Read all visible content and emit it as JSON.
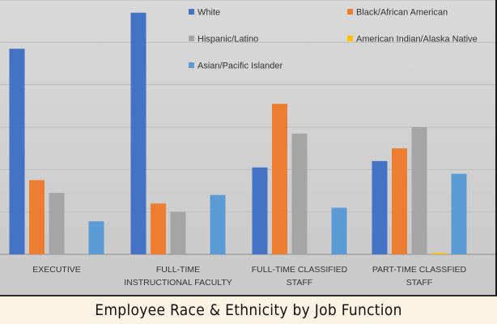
{
  "chart_data": {
    "type": "bar",
    "title": "Employee Race & Ethnicity by Job Function",
    "categories": [
      [
        "EXECUTIVE"
      ],
      [
        "FULL-TIME",
        "INSTRUCTIONAL FACULTY"
      ],
      [
        "FULL-TIME CLASSIFIED",
        "STAFF"
      ],
      [
        "PART-TIME CLASSFIED",
        "STAFF"
      ]
    ],
    "series": [
      {
        "name": "White",
        "color": "#4472c4",
        "values": [
          48.5,
          57.0,
          20.5,
          22.0
        ]
      },
      {
        "name": "Black/African American",
        "color": "#ed7d31",
        "values": [
          17.5,
          12.0,
          35.5,
          25.0
        ]
      },
      {
        "name": "Hispanic/Latino",
        "color": "#a5a5a5",
        "values": [
          14.5,
          10.0,
          28.5,
          30.0
        ]
      },
      {
        "name": "American Indian/Alaska Native",
        "color": "#ffc000",
        "values": [
          0,
          0,
          0,
          0.3
        ]
      },
      {
        "name": "Asian/Pacific Islander",
        "color": "#5b9bd5",
        "values": [
          7.8,
          14.0,
          11.0,
          19.0
        ]
      }
    ],
    "ylim": [
      0,
      60
    ],
    "grid": true,
    "legend": "top"
  }
}
